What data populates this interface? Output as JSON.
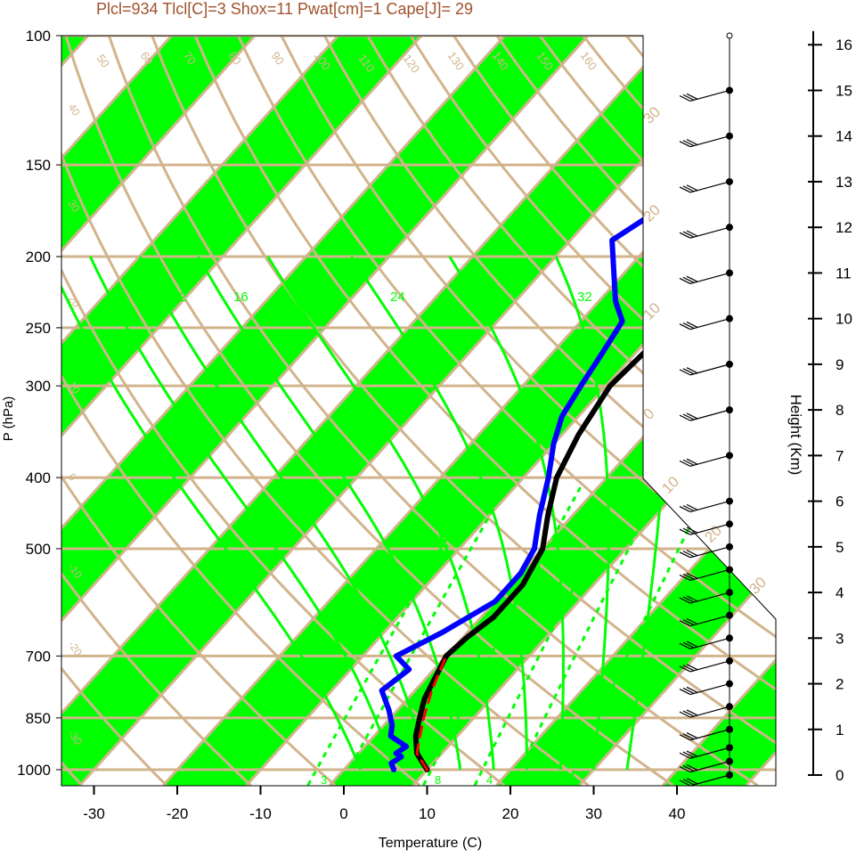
{
  "title": "Plcl=934 Tlcl[C]=3 Shox=11 Pwat[cm]=1 Cape[J]= 29",
  "colors": {
    "title": "#a0522d",
    "tan": "#d2b48c",
    "green": "#00ff00",
    "temp": "#000000",
    "dew": "#0000ff",
    "parcel": "#ff0000"
  },
  "chart_data": {
    "type": "line",
    "xlabel": "Temperature (C)",
    "ylabel": "P (hPa)",
    "y2label": "Height (Km)",
    "x_ticks": [
      "-30",
      "-20",
      "-10",
      "0",
      "10",
      "20",
      "30",
      "40"
    ],
    "x_tick_values": [
      -30,
      -20,
      -10,
      0,
      10,
      20,
      30,
      40
    ],
    "p_ticks": [
      "100",
      "150",
      "200",
      "250",
      "300",
      "400",
      "500",
      "700",
      "850",
      "1000"
    ],
    "p_tick_values": [
      100,
      150,
      200,
      250,
      300,
      400,
      500,
      700,
      850,
      1000
    ],
    "h_ticks": [
      "0",
      "1",
      "2",
      "3",
      "4",
      "5",
      "6",
      "7",
      "8",
      "9",
      "10",
      "11",
      "12",
      "13",
      "14",
      "15",
      "16"
    ],
    "xlim": [
      -34,
      52
    ],
    "plim": [
      100,
      1050
    ],
    "skew_labels": [
      "50",
      "60",
      "70",
      "80",
      "90",
      "100",
      "110",
      "120",
      "130",
      "140",
      "150",
      "160"
    ],
    "dry_adiabat_labels": [
      "40",
      "30",
      "20",
      "10",
      "0",
      "-10",
      "-20",
      "-30"
    ],
    "isotherm_labels": [
      "30",
      "20",
      "10",
      "0",
      "10",
      "20",
      "30"
    ],
    "mixing_ratio_labels": [
      "12",
      "16",
      "24",
      "32"
    ],
    "mixing_ratio_bottom_labels": [
      "3",
      "8",
      "4"
    ],
    "series": [
      {
        "name": "Temperature",
        "points": [
          [
            10,
            1000
          ],
          [
            7,
            950
          ],
          [
            5,
            900
          ],
          [
            3.5,
            850
          ],
          [
            2,
            800
          ],
          [
            0,
            700
          ],
          [
            0.5,
            660
          ],
          [
            1.5,
            620
          ],
          [
            1.5,
            560
          ],
          [
            0,
            500
          ],
          [
            -3,
            450
          ],
          [
            -6,
            400
          ],
          [
            -8,
            350
          ],
          [
            -9.5,
            300
          ],
          [
            -9,
            270
          ],
          [
            -7,
            240
          ],
          [
            -4,
            215
          ],
          [
            0,
            190
          ],
          [
            4,
            170
          ],
          [
            7,
            155
          ],
          [
            8.5,
            140
          ],
          [
            11,
            125
          ],
          [
            12.5,
            115
          ],
          [
            13,
            108
          ]
        ]
      },
      {
        "name": "Dewpoint",
        "points": [
          [
            6,
            1000
          ],
          [
            5,
            980
          ],
          [
            5.5,
            960
          ],
          [
            4.5,
            950
          ],
          [
            5,
            930
          ],
          [
            2,
            900
          ],
          [
            1,
            870
          ],
          [
            -1,
            830
          ],
          [
            -4,
            780
          ],
          [
            -3,
            730
          ],
          [
            -6,
            700
          ],
          [
            -3,
            650
          ],
          [
            0,
            590
          ],
          [
            0,
            540
          ],
          [
            -1,
            500
          ],
          [
            -4,
            450
          ],
          [
            -7,
            400
          ],
          [
            -10,
            360
          ],
          [
            -12,
            330
          ],
          [
            -13,
            300
          ],
          [
            -14,
            270
          ],
          [
            -15,
            245
          ],
          [
            -18,
            230
          ],
          [
            -25,
            190
          ],
          [
            -23,
            175
          ],
          [
            -19,
            155
          ],
          [
            -14,
            130
          ],
          [
            -9,
            110
          ],
          [
            -7,
            104
          ]
        ]
      },
      {
        "name": "Parcel",
        "points": [
          [
            10,
            1000
          ],
          [
            7,
            950
          ],
          [
            5.5,
            900
          ],
          [
            4,
            850
          ],
          [
            2,
            780
          ],
          [
            0,
            700
          ]
        ]
      }
    ],
    "wind_heights_km": [
      0,
      0.3,
      0.6,
      1,
      1.5,
      2,
      2.5,
      3,
      3.5,
      4,
      4.5,
      5,
      5.5,
      6,
      7,
      8,
      9,
      10,
      11,
      12,
      13,
      14,
      15
    ]
  }
}
